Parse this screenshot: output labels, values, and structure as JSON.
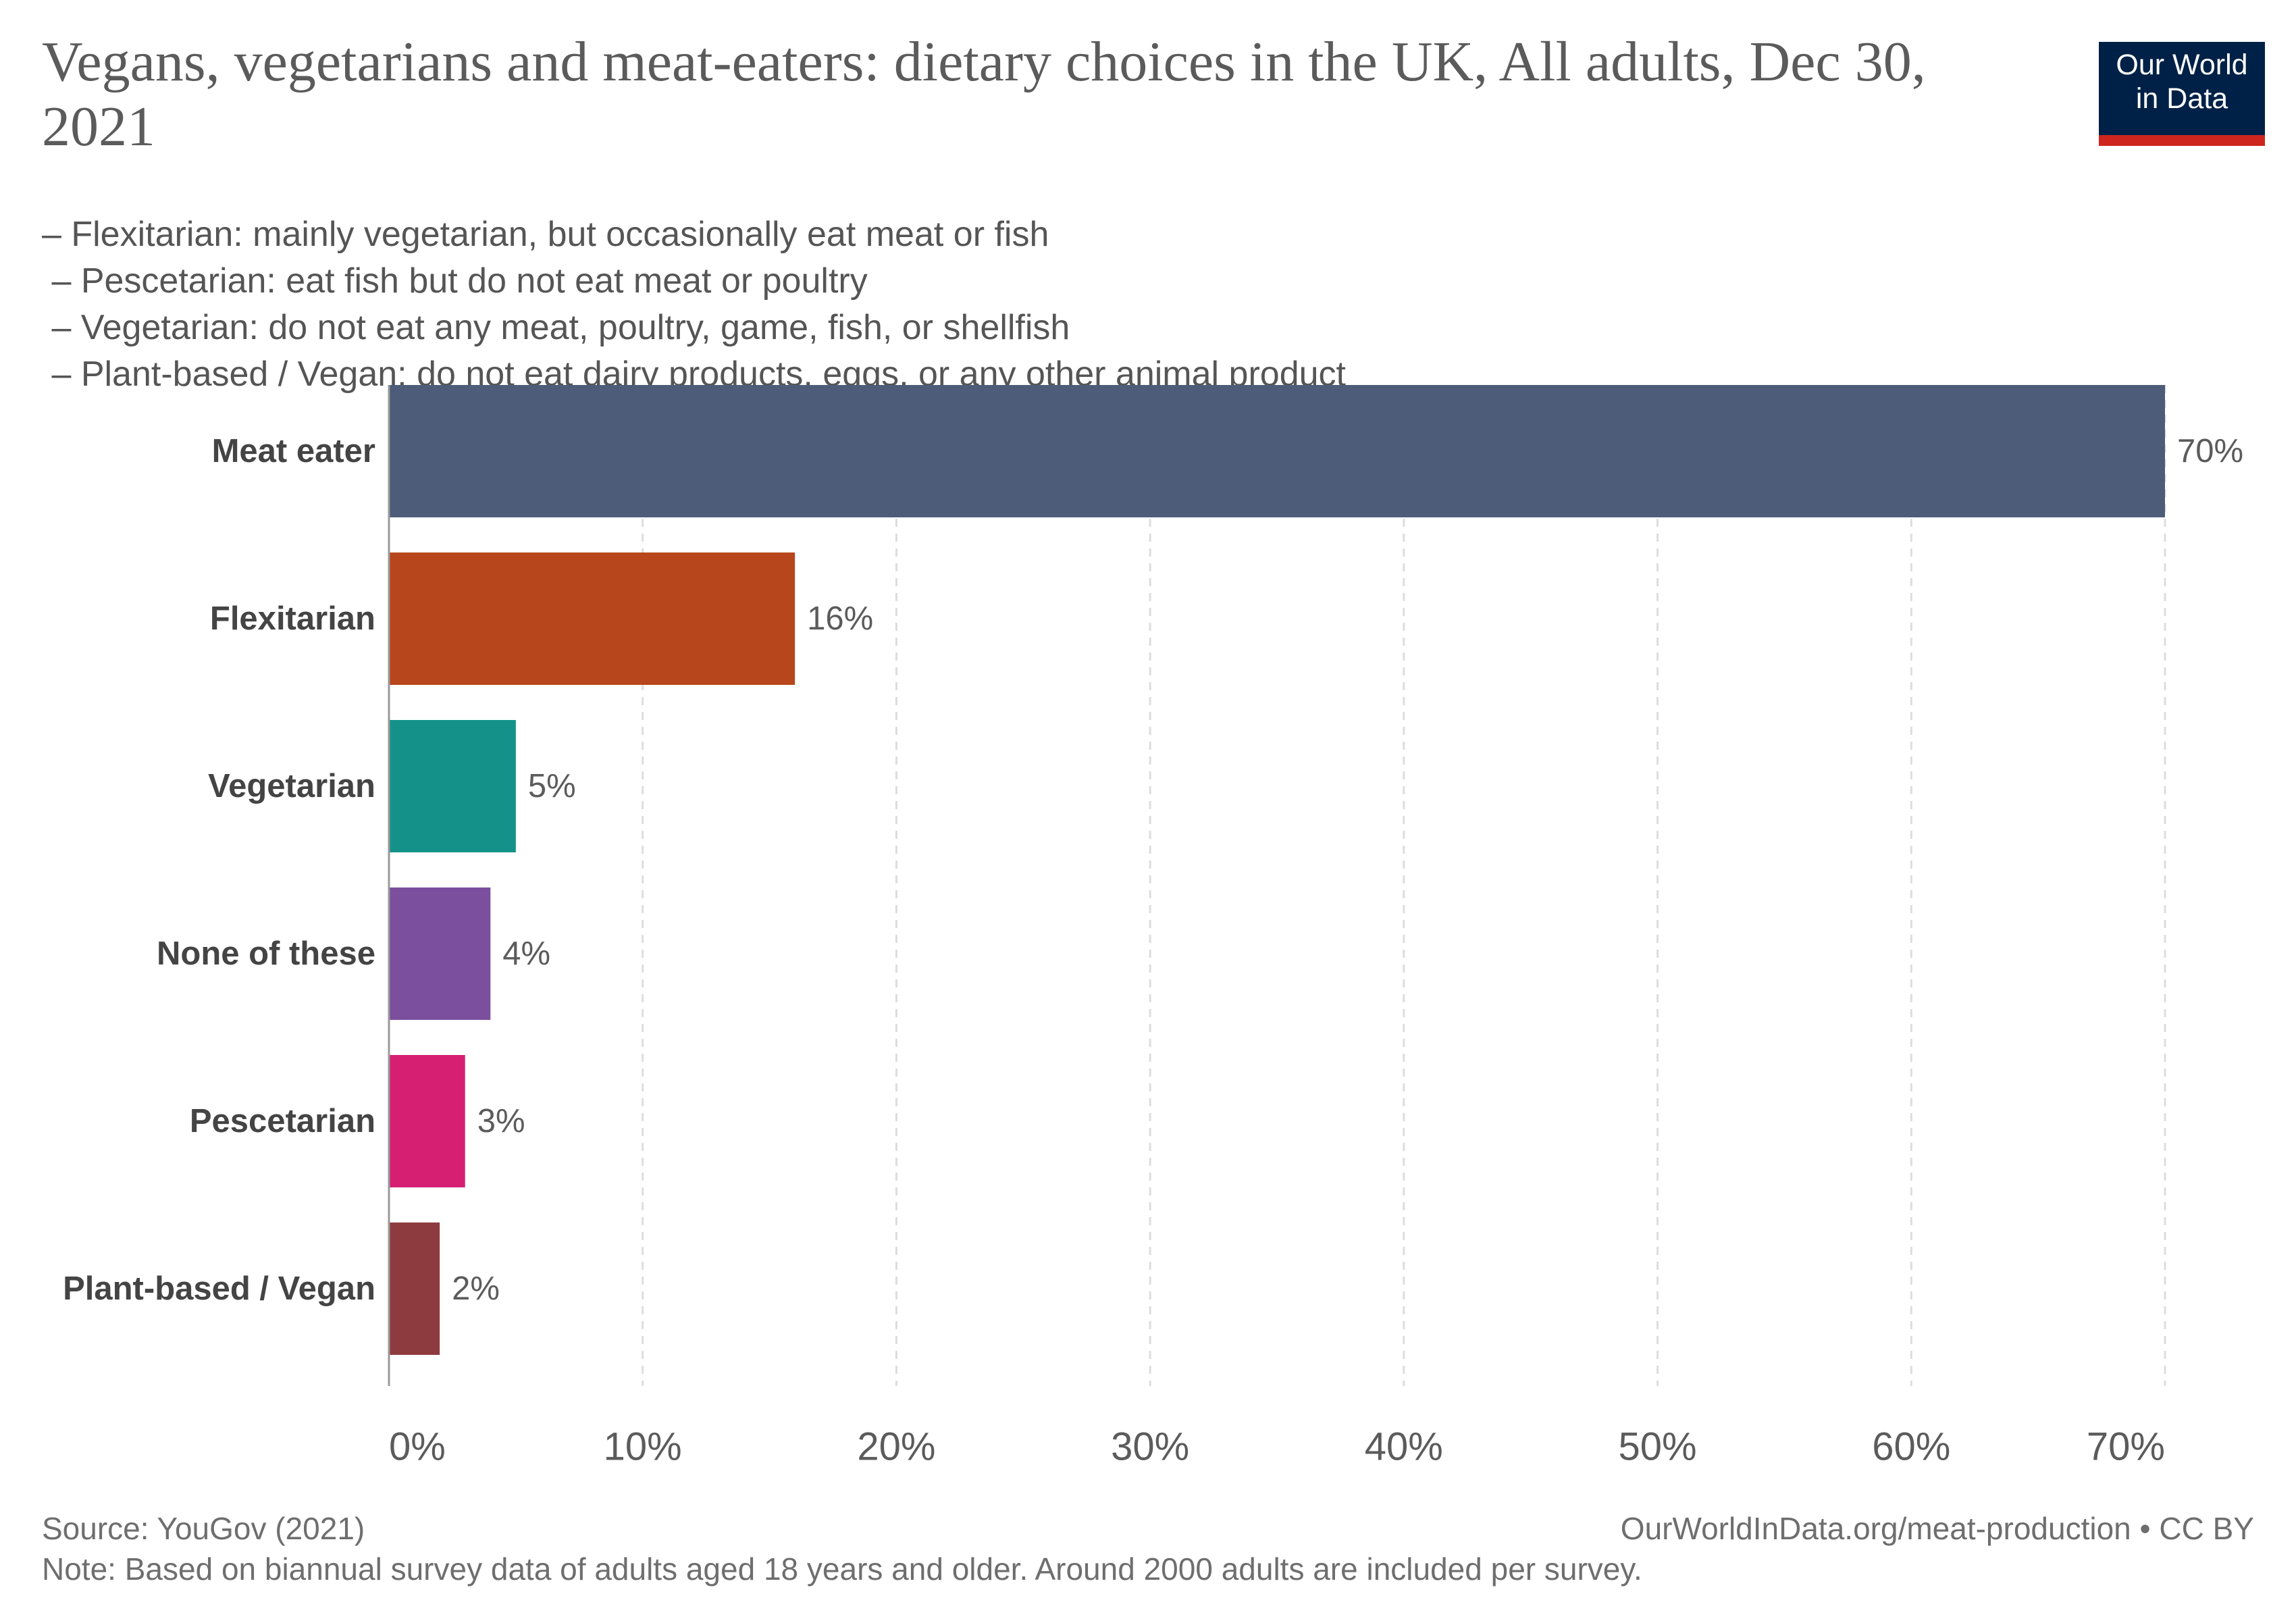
{
  "header": {
    "title": "Vegans, vegetarians and meat-eaters: dietary choices in the UK, All adults, Dec 30, 2021",
    "subtitle_lines": [
      "– Flexitarian: mainly vegetarian, but occasionally eat meat or fish",
      " – Pescetarian: eat fish but do not eat meat or poultry",
      " – Vegetarian: do not eat any meat, poultry, game, fish, or shellfish",
      " – Plant-based / Vegan: do not eat dairy products, eggs, or any other animal product"
    ]
  },
  "logo": {
    "line1": "Our World",
    "line2": "in Data",
    "bg_color": "#002147",
    "accent_color": "#ce261e"
  },
  "chart_data": {
    "type": "bar",
    "orientation": "horizontal",
    "categories": [
      "Meat eater",
      "Flexitarian",
      "Vegetarian",
      "None of these",
      "Pescetarian",
      "Plant-based / Vegan"
    ],
    "values": [
      70,
      16,
      5,
      4,
      3,
      2
    ],
    "value_labels": [
      "70%",
      "16%",
      "5%",
      "4%",
      "3%",
      "2%"
    ],
    "colors": [
      "#4d5c78",
      "#b7461c",
      "#14928a",
      "#7b4f9e",
      "#d61f73",
      "#8e3b40"
    ],
    "xlim": [
      0,
      70
    ],
    "x_ticks": [
      0,
      10,
      20,
      30,
      40,
      50,
      60,
      70
    ],
    "x_tick_labels": [
      "0%",
      "10%",
      "20%",
      "30%",
      "40%",
      "50%",
      "60%",
      "70%"
    ],
    "grid": true,
    "unit": "%"
  },
  "footer": {
    "source": "Source: YouGov (2021)",
    "url": "OurWorldInData.org/meat-production • CC BY",
    "note": "Note: Based on biannual survey data of adults aged 18 years and older. Around 2000 adults are included per survey."
  }
}
